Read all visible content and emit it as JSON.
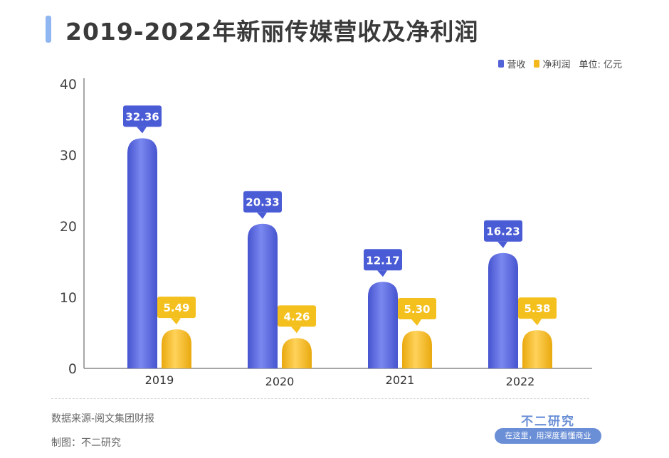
{
  "title": "2019-2022年新丽传媒营收及净利润",
  "legend": {
    "unit": "单位: 亿元"
  },
  "footer": {
    "source": "数据来源-阅文集团财报",
    "maker": "制图：不二研究",
    "brand": "不二研究",
    "tagline": "在这里，用深度看懂商业"
  },
  "colors": {
    "revenue": "#5363d8",
    "profit": "#f2b81c"
  },
  "chart_data": {
    "type": "bar",
    "categories": [
      "2019",
      "2020",
      "2021",
      "2022"
    ],
    "series": [
      {
        "name": "营收",
        "values": [
          32.36,
          20.33,
          12.17,
          16.23
        ]
      },
      {
        "name": "净利润",
        "values": [
          5.49,
          4.26,
          5.3,
          5.38
        ]
      }
    ],
    "data_labels": [
      [
        "32.36",
        "20.33",
        "12.17",
        "16.23"
      ],
      [
        "5.49",
        "4.26",
        "5.30",
        "5.38"
      ]
    ],
    "yticks": [
      "0",
      "10",
      "20",
      "30",
      "40"
    ],
    "ylim": [
      0,
      40
    ],
    "grid": false,
    "legend_position": "top-right"
  }
}
